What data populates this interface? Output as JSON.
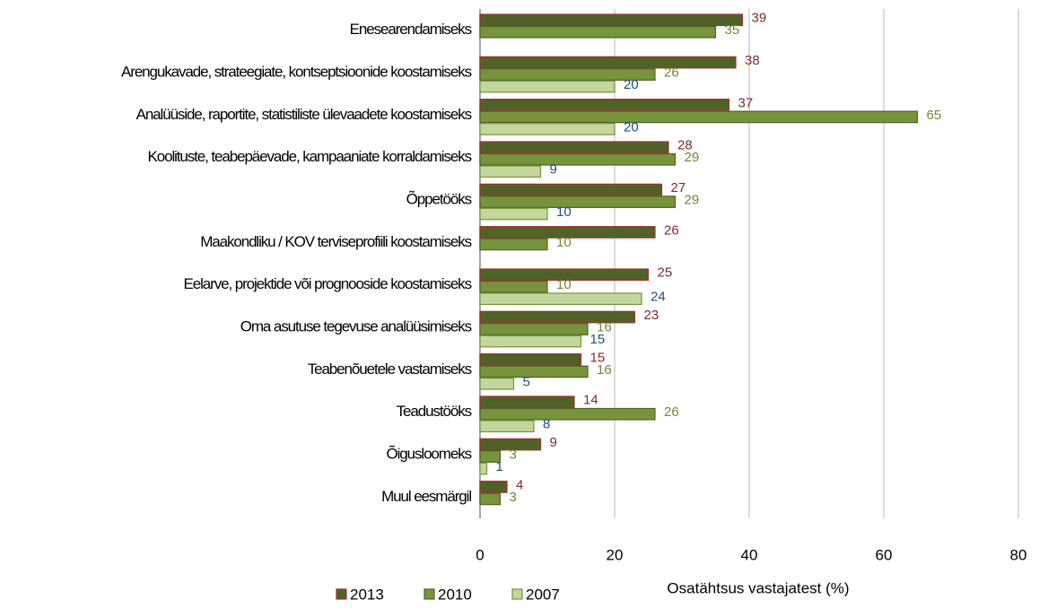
{
  "chart_data": {
    "type": "barh",
    "xlabel": "Osatähtsus vastajatest (%)",
    "categories": [
      "Enesearendamiseks",
      "Arengukavade, strateegiate, kontseptsioonide koostamiseks",
      "Analüüside, raportite, statistiliste ülevaadete koostamiseks",
      "Koolituste, teabepäevade, kampaaniate korraldamiseks",
      "Õppetööks",
      "Maakondliku / KOV terviseprofiili koostamiseks",
      "Eelarve, projektide või prognooside koostamiseks",
      "Oma asutuse tegevuse analüüsimiseks",
      "Teabenõuetele vastamiseks",
      "Teadustööks",
      "Õigusloomeks",
      "Muul eesmärgil"
    ],
    "series": [
      {
        "name": "2013",
        "color": "#4f6228",
        "edgecolor": "#a0312c",
        "label_color": "#7f2a2a",
        "values": [
          39,
          38,
          37,
          28,
          27,
          26,
          25,
          23,
          15,
          14,
          9,
          4
        ]
      },
      {
        "name": "2010",
        "color": "#77933c",
        "edgecolor": "#4f6228",
        "label_color": "#6b8a35",
        "values": [
          35,
          26,
          65,
          29,
          29,
          10,
          10,
          16,
          16,
          26,
          3,
          3
        ]
      },
      {
        "name": "2007",
        "color": "#c3d69b",
        "edgecolor": "#77933c",
        "label_color": "#1f4e79",
        "values": [
          null,
          20,
          20,
          9,
          10,
          null,
          24,
          15,
          5,
          8,
          1,
          null
        ]
      }
    ],
    "xlim": [
      0,
      80
    ],
    "xticks": [
      0,
      20,
      40,
      60,
      80
    ],
    "grid": true,
    "legend": "bottom"
  }
}
